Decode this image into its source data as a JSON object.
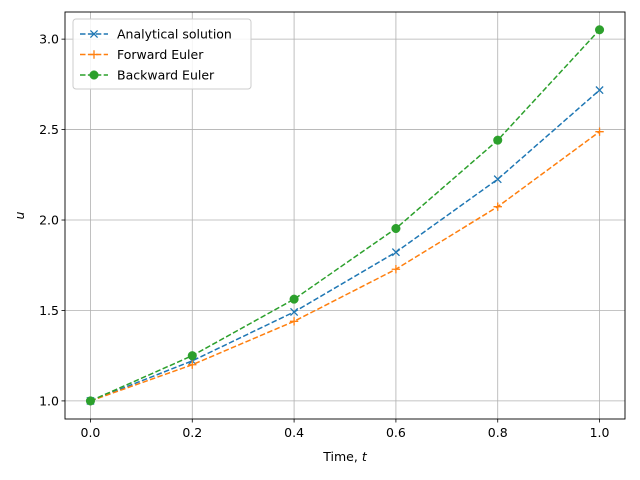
{
  "chart_data": {
    "type": "line",
    "xlabel": "Time, t",
    "ylabel": "u",
    "xlim": [
      -0.05,
      1.05
    ],
    "ylim": [
      0.9,
      3.15
    ],
    "xticks": [
      0.0,
      0.2,
      0.4,
      0.6,
      0.8,
      1.0
    ],
    "xtick_labels": [
      "0.0",
      "0.2",
      "0.4",
      "0.6",
      "0.8",
      "1.0"
    ],
    "yticks": [
      1.0,
      1.5,
      2.0,
      2.5,
      3.0
    ],
    "ytick_labels": [
      "1.0",
      "1.5",
      "2.0",
      "2.5",
      "3.0"
    ],
    "grid": true,
    "legend_position": "upper-left",
    "x": [
      0.0,
      0.2,
      0.4,
      0.6,
      0.8,
      1.0
    ],
    "series": [
      {
        "name": "Analytical solution",
        "color": "#1f77b4",
        "marker": "x",
        "linestyle": "dashed",
        "values": [
          1.0,
          1.2214,
          1.4918,
          1.8221,
          2.2255,
          2.7183
        ]
      },
      {
        "name": "Forward Euler",
        "color": "#ff7f0e",
        "marker": "+",
        "linestyle": "dashed",
        "values": [
          1.0,
          1.2,
          1.44,
          1.728,
          2.0736,
          2.4883
        ]
      },
      {
        "name": "Backward Euler",
        "color": "#2ca02c",
        "marker": "o",
        "linestyle": "dashed",
        "values": [
          1.0,
          1.25,
          1.5625,
          1.9531,
          2.4414,
          3.0518
        ]
      }
    ]
  }
}
